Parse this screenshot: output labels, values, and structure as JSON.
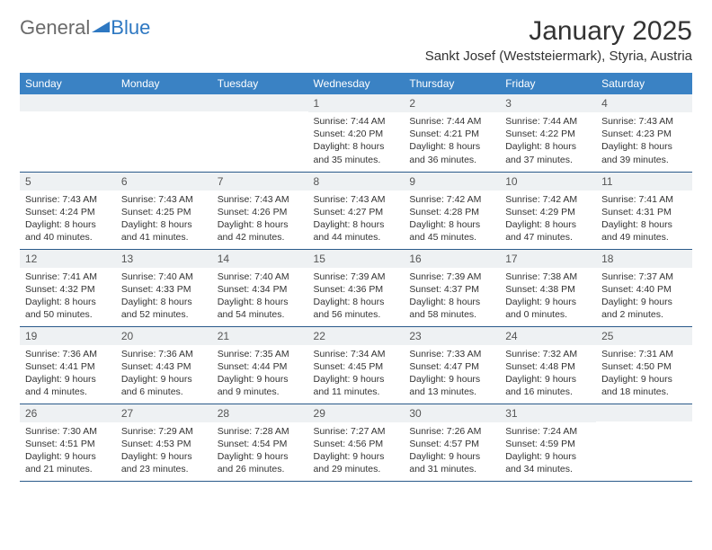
{
  "logo": {
    "part1": "General",
    "part2": "Blue"
  },
  "title": "January 2025",
  "location": "Sankt Josef (Weststeiermark), Styria, Austria",
  "weekdays": [
    "Sunday",
    "Monday",
    "Tuesday",
    "Wednesday",
    "Thursday",
    "Friday",
    "Saturday"
  ],
  "colors": {
    "header_bg": "#3a82c4",
    "header_text": "#ffffff",
    "daynum_bg": "#eef1f3",
    "border": "#2a5a8a",
    "text": "#333333",
    "logo_gray": "#6a6a6a",
    "logo_blue": "#2e78c2"
  },
  "weeks": [
    [
      {
        "day": "",
        "lines": []
      },
      {
        "day": "",
        "lines": []
      },
      {
        "day": "",
        "lines": []
      },
      {
        "day": "1",
        "lines": [
          "Sunrise: 7:44 AM",
          "Sunset: 4:20 PM",
          "Daylight: 8 hours and 35 minutes."
        ]
      },
      {
        "day": "2",
        "lines": [
          "Sunrise: 7:44 AM",
          "Sunset: 4:21 PM",
          "Daylight: 8 hours and 36 minutes."
        ]
      },
      {
        "day": "3",
        "lines": [
          "Sunrise: 7:44 AM",
          "Sunset: 4:22 PM",
          "Daylight: 8 hours and 37 minutes."
        ]
      },
      {
        "day": "4",
        "lines": [
          "Sunrise: 7:43 AM",
          "Sunset: 4:23 PM",
          "Daylight: 8 hours and 39 minutes."
        ]
      }
    ],
    [
      {
        "day": "5",
        "lines": [
          "Sunrise: 7:43 AM",
          "Sunset: 4:24 PM",
          "Daylight: 8 hours and 40 minutes."
        ]
      },
      {
        "day": "6",
        "lines": [
          "Sunrise: 7:43 AM",
          "Sunset: 4:25 PM",
          "Daylight: 8 hours and 41 minutes."
        ]
      },
      {
        "day": "7",
        "lines": [
          "Sunrise: 7:43 AM",
          "Sunset: 4:26 PM",
          "Daylight: 8 hours and 42 minutes."
        ]
      },
      {
        "day": "8",
        "lines": [
          "Sunrise: 7:43 AM",
          "Sunset: 4:27 PM",
          "Daylight: 8 hours and 44 minutes."
        ]
      },
      {
        "day": "9",
        "lines": [
          "Sunrise: 7:42 AM",
          "Sunset: 4:28 PM",
          "Daylight: 8 hours and 45 minutes."
        ]
      },
      {
        "day": "10",
        "lines": [
          "Sunrise: 7:42 AM",
          "Sunset: 4:29 PM",
          "Daylight: 8 hours and 47 minutes."
        ]
      },
      {
        "day": "11",
        "lines": [
          "Sunrise: 7:41 AM",
          "Sunset: 4:31 PM",
          "Daylight: 8 hours and 49 minutes."
        ]
      }
    ],
    [
      {
        "day": "12",
        "lines": [
          "Sunrise: 7:41 AM",
          "Sunset: 4:32 PM",
          "Daylight: 8 hours and 50 minutes."
        ]
      },
      {
        "day": "13",
        "lines": [
          "Sunrise: 7:40 AM",
          "Sunset: 4:33 PM",
          "Daylight: 8 hours and 52 minutes."
        ]
      },
      {
        "day": "14",
        "lines": [
          "Sunrise: 7:40 AM",
          "Sunset: 4:34 PM",
          "Daylight: 8 hours and 54 minutes."
        ]
      },
      {
        "day": "15",
        "lines": [
          "Sunrise: 7:39 AM",
          "Sunset: 4:36 PM",
          "Daylight: 8 hours and 56 minutes."
        ]
      },
      {
        "day": "16",
        "lines": [
          "Sunrise: 7:39 AM",
          "Sunset: 4:37 PM",
          "Daylight: 8 hours and 58 minutes."
        ]
      },
      {
        "day": "17",
        "lines": [
          "Sunrise: 7:38 AM",
          "Sunset: 4:38 PM",
          "Daylight: 9 hours and 0 minutes."
        ]
      },
      {
        "day": "18",
        "lines": [
          "Sunrise: 7:37 AM",
          "Sunset: 4:40 PM",
          "Daylight: 9 hours and 2 minutes."
        ]
      }
    ],
    [
      {
        "day": "19",
        "lines": [
          "Sunrise: 7:36 AM",
          "Sunset: 4:41 PM",
          "Daylight: 9 hours and 4 minutes."
        ]
      },
      {
        "day": "20",
        "lines": [
          "Sunrise: 7:36 AM",
          "Sunset: 4:43 PM",
          "Daylight: 9 hours and 6 minutes."
        ]
      },
      {
        "day": "21",
        "lines": [
          "Sunrise: 7:35 AM",
          "Sunset: 4:44 PM",
          "Daylight: 9 hours and 9 minutes."
        ]
      },
      {
        "day": "22",
        "lines": [
          "Sunrise: 7:34 AM",
          "Sunset: 4:45 PM",
          "Daylight: 9 hours and 11 minutes."
        ]
      },
      {
        "day": "23",
        "lines": [
          "Sunrise: 7:33 AM",
          "Sunset: 4:47 PM",
          "Daylight: 9 hours and 13 minutes."
        ]
      },
      {
        "day": "24",
        "lines": [
          "Sunrise: 7:32 AM",
          "Sunset: 4:48 PM",
          "Daylight: 9 hours and 16 minutes."
        ]
      },
      {
        "day": "25",
        "lines": [
          "Sunrise: 7:31 AM",
          "Sunset: 4:50 PM",
          "Daylight: 9 hours and 18 minutes."
        ]
      }
    ],
    [
      {
        "day": "26",
        "lines": [
          "Sunrise: 7:30 AM",
          "Sunset: 4:51 PM",
          "Daylight: 9 hours and 21 minutes."
        ]
      },
      {
        "day": "27",
        "lines": [
          "Sunrise: 7:29 AM",
          "Sunset: 4:53 PM",
          "Daylight: 9 hours and 23 minutes."
        ]
      },
      {
        "day": "28",
        "lines": [
          "Sunrise: 7:28 AM",
          "Sunset: 4:54 PM",
          "Daylight: 9 hours and 26 minutes."
        ]
      },
      {
        "day": "29",
        "lines": [
          "Sunrise: 7:27 AM",
          "Sunset: 4:56 PM",
          "Daylight: 9 hours and 29 minutes."
        ]
      },
      {
        "day": "30",
        "lines": [
          "Sunrise: 7:26 AM",
          "Sunset: 4:57 PM",
          "Daylight: 9 hours and 31 minutes."
        ]
      },
      {
        "day": "31",
        "lines": [
          "Sunrise: 7:24 AM",
          "Sunset: 4:59 PM",
          "Daylight: 9 hours and 34 minutes."
        ]
      },
      {
        "day": "",
        "lines": []
      }
    ]
  ]
}
